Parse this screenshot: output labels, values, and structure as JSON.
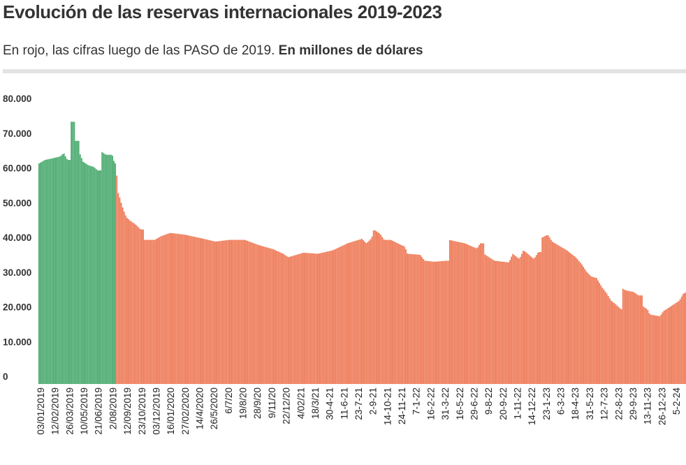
{
  "title": "Evolución de las reservas internacionales 2019-2023",
  "subtitle_regular": "En rojo, las cifras luego de las PASO de 2019.",
  "subtitle_bold": "En millones de dólares",
  "colors": {
    "before": "#4aaa6e",
    "after": "#ee7a57",
    "divider": "#e3e3e3"
  },
  "chart_data": {
    "type": "bar",
    "title": "Evolución de las reservas internacionales 2019-2023",
    "ylabel": "",
    "xlabel": "",
    "ylim": [
      0,
      80000
    ],
    "yticks": [
      "0",
      "10.000",
      "20.000",
      "30.000",
      "40.000",
      "50.000",
      "60.000",
      "70.000",
      "80.000"
    ],
    "grid": false,
    "legend": "none",
    "x_tick_labels": [
      "03/01/2019",
      "12/02/2019",
      "26/03/2019",
      "10/05/2019",
      "21/06/2019",
      "2/08/2019",
      "12/09/2019",
      "23/10/2019",
      "03/12/2019",
      "16/01/2020",
      "27/02/2020",
      "14/4/2020",
      "26/5/2020",
      "6/7/20",
      "19/8/20",
      "28/9/20",
      "9/11/20",
      "22/12/20",
      "4/02/21",
      "18/3/21",
      "30-4-21",
      "11-6-21",
      "23-7-21",
      "2-9-21",
      "14-10-21",
      "24-11-21",
      "7-1-22",
      "16-2-22",
      "31-3-22",
      "16-5-22",
      "29-6-22",
      "9-8-22",
      "20-9-22",
      "1-11-22",
      "14-12-22",
      "23-1-23",
      "6-3-23",
      "18-4-23",
      "31-5-23",
      "12-7-23",
      "22-8-23",
      "29-9-23",
      "13-11-23",
      "26-12-23",
      "5-2-24"
    ],
    "series": [
      {
        "segment": "before PASO (green)",
        "points": [
          [
            "03/01/2019",
            63500
          ],
          [
            "20/01/2019",
            64500
          ],
          [
            "12/02/2019",
            65000
          ],
          [
            "05/03/2019",
            65500
          ],
          [
            "15/03/2019",
            66500
          ],
          [
            "26/03/2019",
            64500
          ],
          [
            "05/04/2019",
            75500
          ],
          [
            "18/04/2019",
            70000
          ],
          [
            "30/04/2019",
            66500
          ],
          [
            "10/05/2019",
            64000
          ],
          [
            "25/05/2019",
            63000
          ],
          [
            "10/06/2019",
            62500
          ],
          [
            "21/06/2019",
            61500
          ],
          [
            "01/07/2019",
            67000
          ],
          [
            "15/07/2019",
            66000
          ],
          [
            "02/08/2019",
            66000
          ],
          [
            "09/08/2019",
            63500
          ]
        ]
      },
      {
        "segment": "after PASO (red)",
        "points": [
          [
            "12/08/2019",
            60000
          ],
          [
            "16/08/2019",
            56000
          ],
          [
            "23/08/2019",
            54000
          ],
          [
            "30/08/2019",
            51500
          ],
          [
            "06/09/2019",
            49500
          ],
          [
            "12/09/2019",
            48000
          ],
          [
            "23/09/2019",
            47000
          ],
          [
            "08/10/2019",
            46000
          ],
          [
            "23/10/2019",
            44500
          ],
          [
            "01/11/2019",
            41500
          ],
          [
            "03/12/2019",
            41500
          ],
          [
            "20/12/2019",
            42500
          ],
          [
            "16/01/2020",
            43500
          ],
          [
            "27/02/2020",
            43000
          ],
          [
            "14/04/2020",
            42000
          ],
          [
            "26/05/2020",
            41000
          ],
          [
            "06/07/2020",
            41500
          ],
          [
            "19/08/2020",
            41500
          ],
          [
            "28/09/2020",
            40000
          ],
          [
            "09/11/2020",
            38800
          ],
          [
            "08/12/2020",
            37500
          ],
          [
            "22/12/2020",
            36500
          ],
          [
            "04/02/2021",
            37800
          ],
          [
            "18/03/2021",
            37500
          ],
          [
            "30/04/2021",
            38500
          ],
          [
            "11/06/2021",
            40500
          ],
          [
            "23/07/2021",
            41800
          ],
          [
            "05/08/2021",
            40500
          ],
          [
            "20/08/2021",
            42000
          ],
          [
            "26/08/2021",
            44500
          ],
          [
            "02/09/2021",
            44000
          ],
          [
            "14/09/2021",
            43200
          ],
          [
            "25/09/2021",
            41500
          ],
          [
            "14/10/2021",
            41500
          ],
          [
            "24/11/2021",
            39500
          ],
          [
            "01/12/2021",
            37500
          ],
          [
            "07/01/2022",
            37200
          ],
          [
            "20/01/2022",
            35500
          ],
          [
            "16/02/2022",
            35200
          ],
          [
            "25/03/2022",
            35500
          ],
          [
            "31/03/2022",
            41500
          ],
          [
            "16/05/2022",
            40500
          ],
          [
            "20/06/2022",
            39000
          ],
          [
            "29/06/2022",
            40500
          ],
          [
            "10/07/2022",
            37500
          ],
          [
            "09/08/2022",
            35500
          ],
          [
            "20/09/2022",
            35000
          ],
          [
            "01/10/2022",
            37500
          ],
          [
            "20/10/2022",
            36000
          ],
          [
            "01/11/2022",
            38500
          ],
          [
            "14/11/2022",
            37500
          ],
          [
            "01/12/2022",
            36000
          ],
          [
            "14/12/2022",
            38000
          ],
          [
            "22/12/2022",
            42000
          ],
          [
            "10/01/2023",
            43000
          ],
          [
            "23/01/2023",
            41000
          ],
          [
            "06/03/2023",
            38500
          ],
          [
            "01/04/2023",
            36500
          ],
          [
            "18/04/2023",
            34500
          ],
          [
            "01/05/2023",
            32500
          ],
          [
            "15/05/2023",
            31000
          ],
          [
            "31/05/2023",
            30500
          ],
          [
            "15/06/2023",
            28000
          ],
          [
            "30/06/2023",
            26000
          ],
          [
            "12/07/2023",
            24000
          ],
          [
            "25/07/2023",
            23000
          ],
          [
            "10/08/2023",
            21500
          ],
          [
            "14/08/2023",
            27500
          ],
          [
            "22/08/2023",
            27000
          ],
          [
            "15/09/2023",
            26500
          ],
          [
            "29/09/2023",
            25500
          ],
          [
            "10/10/2023",
            22500
          ],
          [
            "25/10/2023",
            21500
          ],
          [
            "01/11/2023",
            20000
          ],
          [
            "13/11/2023",
            19800
          ],
          [
            "30/11/2023",
            19500
          ],
          [
            "10/12/2023",
            21000
          ],
          [
            "26/12/2023",
            22000
          ],
          [
            "10/01/2024",
            23000
          ],
          [
            "25/01/2024",
            24000
          ],
          [
            "05/02/2024",
            26000
          ],
          [
            "15/02/2024",
            26500
          ]
        ]
      }
    ]
  }
}
